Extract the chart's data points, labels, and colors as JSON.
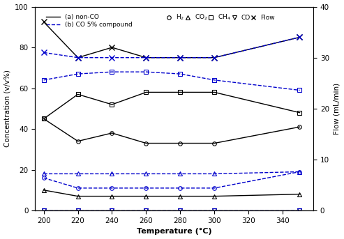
{
  "temperature": [
    200,
    220,
    240,
    260,
    280,
    300,
    350
  ],
  "nonCO_H2": [
    45,
    34,
    38,
    33,
    33,
    33,
    41
  ],
  "nonCO_CO2": [
    45,
    57,
    52,
    58,
    58,
    58,
    48
  ],
  "nonCO_CH4": [
    10,
    7,
    7,
    7,
    7,
    7,
    8
  ],
  "nonCO_CO": [
    0,
    0,
    0,
    0,
    0,
    0,
    0
  ],
  "nonCO_Flow": [
    37,
    30,
    32,
    30,
    30,
    30,
    34
  ],
  "CO5_H2": [
    16,
    11,
    11,
    11,
    11,
    11,
    19
  ],
  "CO5_CO2": [
    64,
    67,
    68,
    68,
    67,
    64,
    59
  ],
  "CO5_CH4": [
    18,
    18,
    18,
    18,
    18,
    18,
    19
  ],
  "CO5_CO": [
    0,
    0,
    0,
    0,
    0,
    0,
    0
  ],
  "CO5_Flow": [
    31,
    30,
    30,
    30,
    30,
    30,
    34
  ],
  "xlim": [
    195,
    358
  ],
  "ylim_left": [
    0,
    100
  ],
  "ylim_right": [
    0,
    40
  ],
  "xticks": [
    200,
    220,
    240,
    260,
    280,
    300,
    320,
    340
  ],
  "yticks_left": [
    0,
    20,
    40,
    60,
    80,
    100
  ],
  "yticks_right": [
    0,
    10,
    20,
    30,
    40
  ],
  "color_nonCO": "#000000",
  "color_CO5": "#0000cc",
  "xlabel": "Temperature (°C)",
  "ylabel_left": "Concentration (v/v%)",
  "ylabel_right": "Flow (mL/min)",
  "label_nonCO": "(a) non-CO",
  "label_CO5": "(b) CO 5% compound",
  "label_H2": "H$_2$",
  "label_CO2": "CO$_2$",
  "label_CH4": "CH$_4$",
  "label_CO": "CO",
  "label_Flow": "Flow"
}
